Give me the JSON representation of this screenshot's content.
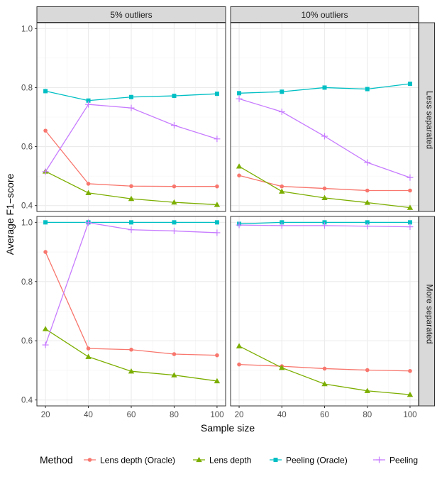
{
  "chart_data": {
    "type": "line",
    "xlabel": "Sample size",
    "ylabel": "Average F1−score",
    "x": [
      20,
      40,
      60,
      80,
      100
    ],
    "xticks": [
      "20",
      "40",
      "60",
      "80",
      "100"
    ],
    "yticks": [
      "0.4",
      "0.6",
      "0.8",
      "1.0"
    ],
    "ylim": [
      0.38,
      1.02
    ],
    "col_facets": [
      "5% outliers",
      "10% outliers"
    ],
    "row_facets": [
      "Less separated",
      "More separated"
    ],
    "legend": {
      "title": "Method",
      "position": "bottom",
      "entries": [
        {
          "name": "Lens depth (Oracle)",
          "color": "#F8766D",
          "marker": "circle"
        },
        {
          "name": "Lens depth",
          "color": "#7CAE00",
          "marker": "triangle"
        },
        {
          "name": "Peeling (Oracle)",
          "color": "#00BFC4",
          "marker": "square"
        },
        {
          "name": "Peeling",
          "color": "#C77CFF",
          "marker": "plus"
        }
      ]
    },
    "panels": [
      {
        "row": "Less separated",
        "col": "5% outliers",
        "series": [
          {
            "name": "Lens depth (Oracle)",
            "values": [
              0.654,
              0.474,
              0.466,
              0.465,
              0.465
            ]
          },
          {
            "name": "Lens depth",
            "values": [
              0.516,
              0.443,
              0.423,
              0.411,
              0.403
            ]
          },
          {
            "name": "Peeling (Oracle)",
            "values": [
              0.788,
              0.756,
              0.768,
              0.772,
              0.779
            ]
          },
          {
            "name": "Peeling",
            "values": [
              0.515,
              0.743,
              0.731,
              0.672,
              0.626
            ]
          }
        ]
      },
      {
        "row": "Less separated",
        "col": "10% outliers",
        "series": [
          {
            "name": "Lens depth (Oracle)",
            "values": [
              0.502,
              0.465,
              0.458,
              0.451,
              0.451
            ]
          },
          {
            "name": "Lens depth",
            "values": [
              0.533,
              0.448,
              0.426,
              0.41,
              0.393
            ]
          },
          {
            "name": "Peeling (Oracle)",
            "values": [
              0.781,
              0.786,
              0.8,
              0.795,
              0.813
            ]
          },
          {
            "name": "Peeling",
            "values": [
              0.762,
              0.718,
              0.635,
              0.546,
              0.495
            ]
          }
        ]
      },
      {
        "row": "More separated",
        "col": "5% outliers",
        "series": [
          {
            "name": "Lens depth (Oracle)",
            "values": [
              0.9,
              0.574,
              0.57,
              0.555,
              0.551
            ]
          },
          {
            "name": "Lens depth",
            "values": [
              0.64,
              0.546,
              0.497,
              0.484,
              0.464
            ]
          },
          {
            "name": "Peeling (Oracle)",
            "values": [
              1.0,
              1.0,
              1.0,
              1.0,
              1.0
            ]
          },
          {
            "name": "Peeling",
            "values": [
              0.586,
              0.999,
              0.975,
              0.971,
              0.965
            ]
          }
        ]
      },
      {
        "row": "More separated",
        "col": "10% outliers",
        "series": [
          {
            "name": "Lens depth (Oracle)",
            "values": [
              0.52,
              0.514,
              0.506,
              0.501,
              0.498
            ]
          },
          {
            "name": "Lens depth",
            "values": [
              0.582,
              0.509,
              0.454,
              0.431,
              0.418
            ]
          },
          {
            "name": "Peeling (Oracle)",
            "values": [
              0.995,
              1.0,
              1.0,
              1.0,
              1.0
            ]
          },
          {
            "name": "Peeling",
            "values": [
              0.991,
              0.989,
              0.989,
              0.987,
              0.985
            ]
          }
        ]
      }
    ]
  }
}
